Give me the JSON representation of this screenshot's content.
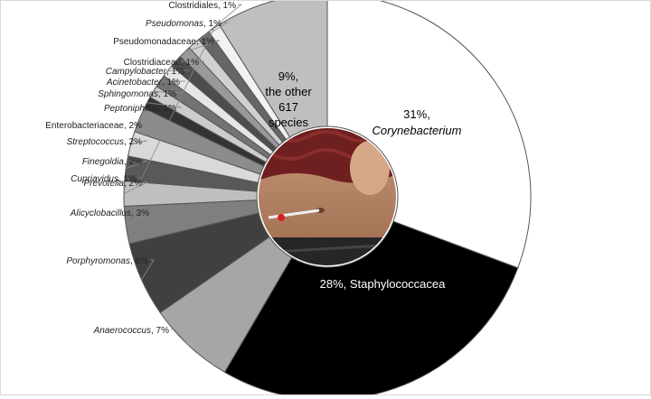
{
  "chart_data": {
    "type": "pie",
    "variant": "donut",
    "slices": [
      {
        "taxon": "Corynebacterium",
        "pct_text": "31%",
        "value": 31,
        "italic": true,
        "color": "#ffffff",
        "label_order": "pct-first-2line",
        "label_placement": "inside"
      },
      {
        "taxon": "Staphylococcacea",
        "pct_text": "28%",
        "value": 28,
        "italic": false,
        "color": "#000000",
        "label_order": "pct-first",
        "label_placement": "inside"
      },
      {
        "taxon": "Anaerococcus",
        "pct_text": "7%",
        "value": 7,
        "italic": true,
        "color": "#a6a6a6",
        "label_placement": "outside"
      },
      {
        "taxon": "Porphyromonas",
        "pct_text": "6%",
        "value": 6,
        "italic": true,
        "color": "#404040",
        "label_placement": "outside"
      },
      {
        "taxon": "Alicyclobacillus",
        "pct_text": "3%",
        "value": 3,
        "italic": true,
        "color": "#7f7f7f",
        "label_placement": "outside"
      },
      {
        "taxon": "Prevotella",
        "pct_text": "2%",
        "value": 2,
        "italic": true,
        "color": "#bfbfbf",
        "label_placement": "outside"
      },
      {
        "taxon": "Finegoldia",
        "pct_text": "2%",
        "value": 2,
        "italic": true,
        "color": "#595959",
        "label_placement": "outside"
      },
      {
        "taxon": "Streptococcus",
        "pct_text": "2%",
        "value": 2,
        "italic": true,
        "color": "#d9d9d9",
        "label_placement": "outside"
      },
      {
        "taxon": "Enterobacteriaceae",
        "pct_text": "2%",
        "value": 2,
        "italic": false,
        "color": "#8c8c8c",
        "label_placement": "outside"
      },
      {
        "taxon": "Peptoniphilus",
        "pct_text": "1%",
        "value": 1,
        "italic": true,
        "color": "#333333",
        "label_placement": "outside"
      },
      {
        "taxon": "Sphingomonas",
        "pct_text": "1%",
        "value": 1,
        "italic": true,
        "color": "#cccccc",
        "label_placement": "outside"
      },
      {
        "taxon": "Acinetobacter",
        "pct_text": "1%",
        "value": 1,
        "italic": true,
        "color": "#737373",
        "label_placement": "outside"
      },
      {
        "taxon": "Campylobacter",
        "pct_text": "1%",
        "value": 1,
        "italic": true,
        "color": "#e6e6e6",
        "label_placement": "outside"
      },
      {
        "taxon": "Clostridiaceae",
        "pct_text": "1%",
        "value": 1,
        "italic": false,
        "color": "#4d4d4d",
        "label_placement": "outside"
      },
      {
        "taxon": "Pseudomonadaceae",
        "pct_text": "1%",
        "value": 1,
        "italic": false,
        "color": "#999999",
        "label_placement": "outside"
      },
      {
        "taxon": "Pseudomonas",
        "pct_text": "1%",
        "value": 1,
        "italic": true,
        "color": "#d0d0d0",
        "label_placement": "outside"
      },
      {
        "taxon": "Clostridiales",
        "pct_text": "1%",
        "value": 1,
        "italic": false,
        "color": "#666666",
        "label_placement": "outside"
      },
      {
        "taxon": "Cupriavidus",
        "pct_text": "1%",
        "value": 1,
        "italic": true,
        "color": "#f2f2f2",
        "label_placement": "outside"
      },
      {
        "lines": [
          "9%,",
          "the other",
          "617",
          "species"
        ],
        "value": 9,
        "italic": false,
        "color": "#bfbfbf",
        "label_placement": "inside"
      }
    ],
    "center_photo": "photo of abdomen being swabbed at the navel with a cotton swab"
  }
}
